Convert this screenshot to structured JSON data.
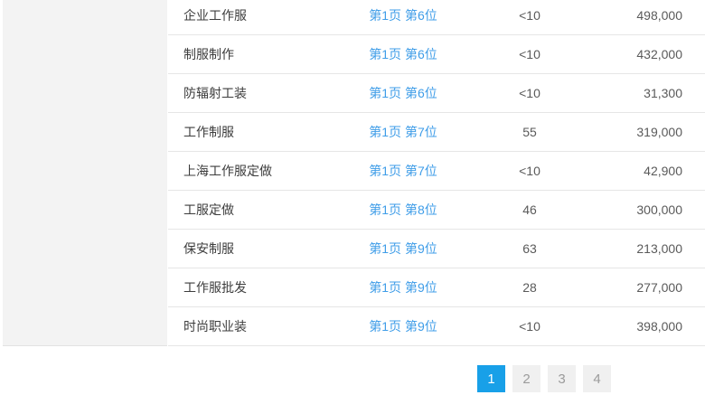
{
  "colors": {
    "link_blue": "#3f9de8",
    "accent_blue": "#18a0e8",
    "panel_gray": "#f3f3f3",
    "row_border": "#e6e6e6"
  },
  "table": {
    "rows": [
      {
        "keyword": "企业工作服",
        "rank": "第1页 第6位",
        "metric": "<10",
        "volume": "498,000"
      },
      {
        "keyword": "制服制作",
        "rank": "第1页 第6位",
        "metric": "<10",
        "volume": "432,000"
      },
      {
        "keyword": "防辐射工装",
        "rank": "第1页 第6位",
        "metric": "<10",
        "volume": "31,300"
      },
      {
        "keyword": "工作制服",
        "rank": "第1页 第7位",
        "metric": "55",
        "volume": "319,000"
      },
      {
        "keyword": "上海工作服定做",
        "rank": "第1页 第7位",
        "metric": "<10",
        "volume": "42,900"
      },
      {
        "keyword": "工服定做",
        "rank": "第1页 第8位",
        "metric": "46",
        "volume": "300,000"
      },
      {
        "keyword": "保安制服",
        "rank": "第1页 第9位",
        "metric": "63",
        "volume": "213,000"
      },
      {
        "keyword": "工作服批发",
        "rank": "第1页 第9位",
        "metric": "28",
        "volume": "277,000"
      },
      {
        "keyword": "时尚职业装",
        "rank": "第1页 第9位",
        "metric": "<10",
        "volume": "398,000"
      }
    ]
  },
  "pagination": {
    "pages": [
      "1",
      "2",
      "3",
      "4"
    ],
    "active_page": "1"
  }
}
